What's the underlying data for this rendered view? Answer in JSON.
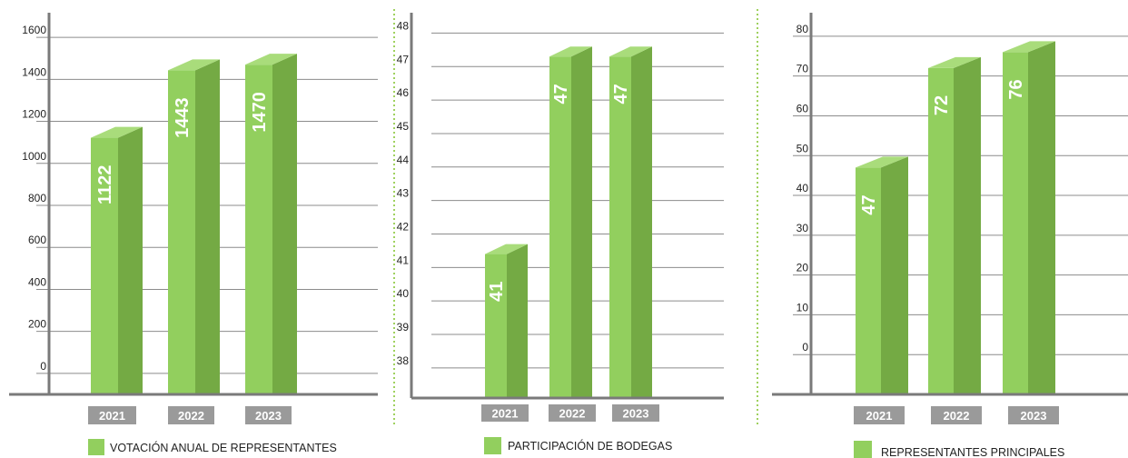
{
  "colors": {
    "bar_front": "#92cf5e",
    "bar_side": "#74aa44",
    "bar_top": "#a9dc7b",
    "axis": "#7a7a7a",
    "grid": "#8c8c8c",
    "category_box": "#9a9a9a",
    "separator": "#9fd15e"
  },
  "chart_data": [
    {
      "type": "bar",
      "categories": [
        "2021",
        "2022",
        "2023"
      ],
      "values": [
        1122,
        1443,
        1470
      ],
      "value_labels": [
        "1122",
        "1443",
        "1470"
      ],
      "y_ticks": [
        "0",
        "200",
        "400",
        "600",
        "800",
        "1000",
        "1200",
        "1400",
        "1600"
      ],
      "y_tick_values": [
        0,
        200,
        400,
        600,
        800,
        1000,
        1200,
        1400,
        1600
      ],
      "ylim": [
        -100,
        1700
      ],
      "legend": "VOTACIÓN ANUAL DE REPRESENTANTES",
      "grid": true
    },
    {
      "type": "bar",
      "categories": [
        "2021",
        "2022",
        "2023"
      ],
      "values": [
        41.4,
        47.3,
        47.3
      ],
      "value_labels": [
        "41",
        "47",
        "47"
      ],
      "y_ticks": [
        "38",
        "39",
        "40",
        "41",
        "42",
        "43",
        "44",
        "45",
        "46",
        "47",
        "48"
      ],
      "y_tick_values": [
        38,
        39,
        40,
        41,
        42,
        43,
        44,
        45,
        46,
        47,
        48
      ],
      "ylim": [
        37.1,
        48.5
      ],
      "legend": "PARTICIPACIÓN DE BODEGAS",
      "grid": true
    },
    {
      "type": "bar",
      "categories": [
        "2021",
        "2022",
        "2023"
      ],
      "values": [
        47,
        72,
        76
      ],
      "value_labels": [
        "47",
        "72",
        "76"
      ],
      "y_ticks": [
        "0",
        "10",
        "20",
        "30",
        "40",
        "50",
        "60",
        "70",
        "80"
      ],
      "y_tick_values": [
        0,
        10,
        20,
        30,
        40,
        50,
        60,
        70,
        80
      ],
      "ylim": [
        -10,
        85
      ],
      "legend": "REPRESENTANTES PRINCIPALES",
      "grid": true
    }
  ]
}
